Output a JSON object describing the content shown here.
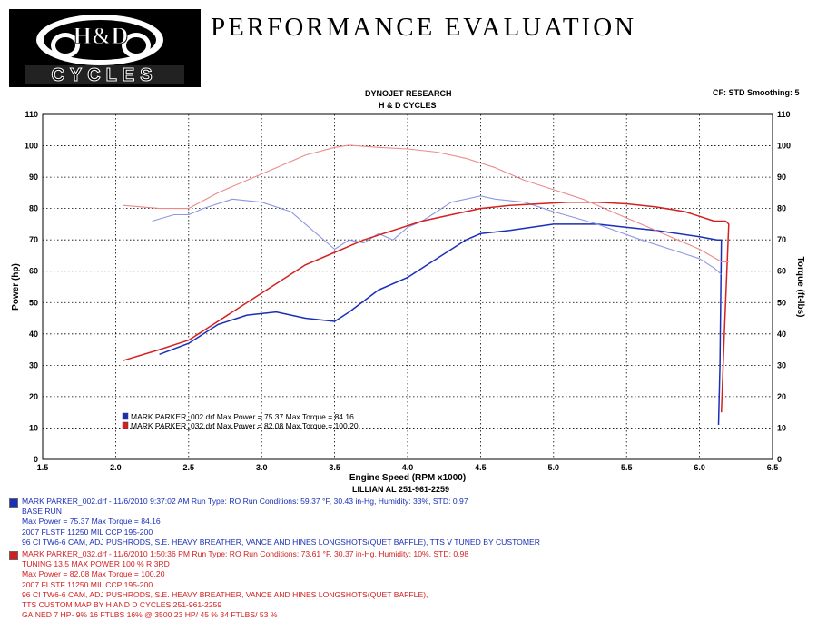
{
  "header": {
    "logo_top_text": "H&D",
    "logo_bottom_text": "CYCLES",
    "banner": "PERFORMANCE EVALUATION",
    "dyno_title": "DYNOJET RESEARCH",
    "shop_name": "H & D CYCLES",
    "cf_smoothing": "CF: STD  Smoothing: 5",
    "location_phone": "LILLIAN AL 251-961-2259"
  },
  "chart_data": {
    "type": "line",
    "title": "DYNOJET RESEARCH",
    "subtitle": "H & D CYCLES",
    "xlabel": "Engine Speed (RPM x1000)",
    "ylabel": "Power (hp)",
    "y2label": "Torque (ft-lbs)",
    "xlim": [
      1.5,
      6.5
    ],
    "ylim": [
      0,
      110
    ],
    "y2lim": [
      0,
      110
    ],
    "x_ticks": [
      "1.5",
      "2.0",
      "2.5",
      "3.0",
      "3.5",
      "4.0",
      "4.5",
      "5.0",
      "5.5",
      "6.0",
      "6.5"
    ],
    "y_ticks": [
      "0",
      "10",
      "20",
      "30",
      "40",
      "50",
      "60",
      "70",
      "80",
      "90",
      "100",
      "110"
    ],
    "grid": true,
    "legend_position": "bottom-left",
    "series": [
      {
        "name": "MARK PARKER_002.drf Power",
        "color": "#1a2fb8",
        "style": "dark",
        "x": [
          2.3,
          2.5,
          2.7,
          2.9,
          3.1,
          3.3,
          3.5,
          3.6,
          3.8,
          4.0,
          4.2,
          4.4,
          4.5,
          4.7,
          5.0,
          5.3,
          5.5,
          5.7,
          6.0,
          6.12,
          6.15,
          6.14,
          6.13
        ],
        "y": [
          33.5,
          37,
          43,
          46,
          47,
          45,
          44,
          47,
          54,
          58,
          64,
          70,
          72,
          73,
          75,
          75,
          74,
          73,
          71,
          70,
          70,
          30,
          11
        ]
      },
      {
        "name": "MARK PARKER_002.drf Torque",
        "color": "#8e97e4",
        "style": "light",
        "x": [
          2.25,
          2.4,
          2.5,
          2.6,
          2.8,
          3.0,
          3.2,
          3.4,
          3.5,
          3.6,
          3.7,
          3.8,
          3.9,
          4.0,
          4.1,
          4.3,
          4.5,
          4.6,
          4.8,
          5.0,
          5.3,
          5.6,
          5.8,
          6.0,
          6.1,
          6.15
        ],
        "y": [
          76,
          78,
          78,
          80,
          83,
          82,
          79,
          71,
          67,
          70,
          69,
          72,
          70,
          74,
          76,
          82,
          84,
          83,
          82,
          79,
          75,
          70,
          67,
          64,
          61,
          59
        ]
      },
      {
        "name": "MARK PARKER_032.drf Power",
        "color": "#d42020",
        "style": "dark",
        "x": [
          2.05,
          2.3,
          2.5,
          2.7,
          2.9,
          3.1,
          3.3,
          3.5,
          3.7,
          3.9,
          4.1,
          4.3,
          4.5,
          4.7,
          4.9,
          5.1,
          5.3,
          5.5,
          5.7,
          5.9,
          6.1,
          6.18,
          6.2,
          6.17,
          6.15
        ],
        "y": [
          31.5,
          35,
          38,
          44,
          50,
          56,
          62,
          66,
          70,
          73,
          76,
          78,
          80,
          81,
          81.5,
          82,
          82,
          81.5,
          80.5,
          79,
          76,
          76,
          75,
          40,
          15
        ]
      },
      {
        "name": "MARK PARKER_032.drf Torque",
        "color": "#ec8a8a",
        "style": "light",
        "x": [
          2.05,
          2.3,
          2.5,
          2.7,
          2.9,
          3.1,
          3.3,
          3.5,
          3.6,
          3.8,
          4.0,
          4.2,
          4.4,
          4.6,
          4.8,
          5.0,
          5.2,
          5.4,
          5.6,
          5.8,
          6.0,
          6.15,
          6.2
        ],
        "y": [
          81,
          80,
          80,
          85,
          89,
          93,
          97,
          99.5,
          100.2,
          99.5,
          99,
          98,
          96,
          93,
          89,
          86,
          83,
          79,
          75,
          71,
          67,
          63,
          63
        ]
      }
    ],
    "legend": [
      {
        "text": "MARK PARKER_002.drf Max Power = 75.37     Max Torque = 84.16",
        "color": "#1a2fb8"
      },
      {
        "text": "MARK PARKER_032.drf Max Power = 82.08     Max Torque = 100.20",
        "color": "#d42020"
      }
    ]
  },
  "runs": [
    {
      "color": "#1a2fb8",
      "header": "MARK PARKER_002.drf - 11/6/2010 9:37:02 AM  Run Type: RO  Run Conditions: 59.37 °F, 30.43 in-Hg,  Humidity:  33%, STD: 0.97",
      "lines": [
        "BASE RUN",
        "Max Power = 75.37  Max Torque = 84.16",
        "2007 FLSTF 11250 MIL CCP 195-200",
        "96 CI TW6-6 CAM, ADJ PUSHRODS, S.E. HEAVY BREATHER, VANCE AND HINES LONGSHOTS(QUET BAFFLE), TTS  V TUNED BY CUSTOMER"
      ]
    },
    {
      "color": "#d22020",
      "header": "MARK PARKER_032.drf - 11/6/2010 1:50:36 PM  Run Type: RO  Run Conditions: 73.61 °F, 30.37 in-Hg,  Humidity:  10%, STD: 0.98",
      "lines": [
        "TUNING 13.5 MAX POWER     100    %     R  3RD",
        "Max Power = 82.08  Max Torque = 100.20",
        "2007 FLSTF 11250 MIL CCP 195-200",
        "96 CI TW6-6 CAM, ADJ PUSHRODS, S.E. HEAVY BREATHER, VANCE AND HINES LONGSHOTS(QUET BAFFLE),",
        "TTS CUSTOM MAP BY H AND D CYCLES 251-961-2259",
        "GAINED     7 HP- 9%      16 FTLBS 16%  @ 3500 23 HP/ 45 %      34 FTLBS/ 53 %"
      ]
    }
  ]
}
